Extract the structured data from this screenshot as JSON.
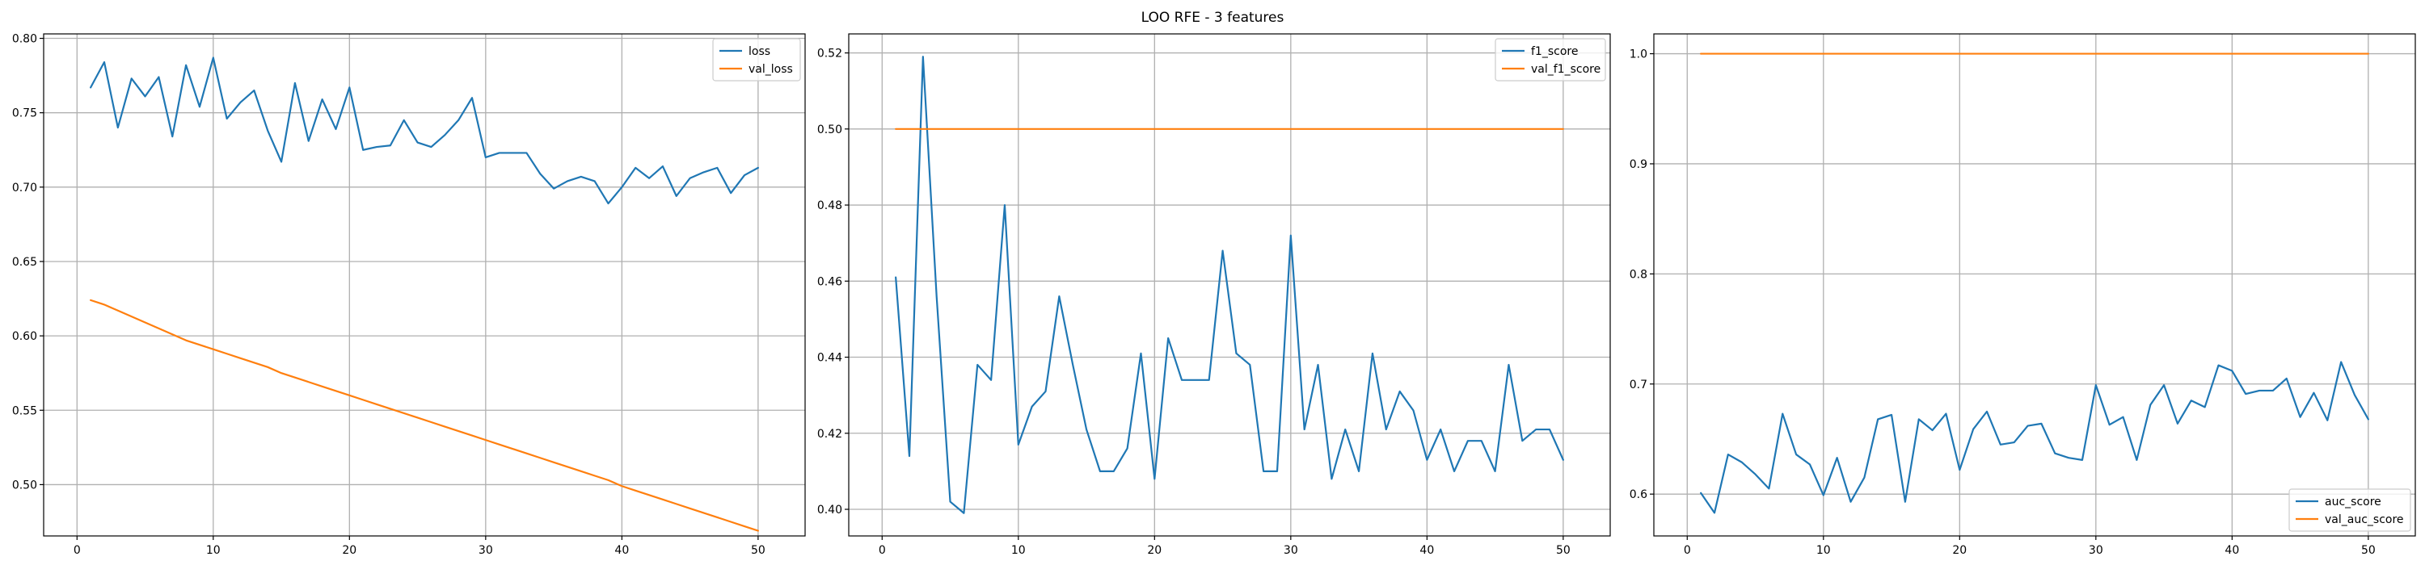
{
  "figure": {
    "title": "LOO RFE - 3 features"
  },
  "chart_data": [
    {
      "type": "line",
      "title": "",
      "xlabel": "",
      "ylabel": "",
      "xlim": [
        -2.45,
        53.45
      ],
      "ylim": [
        0.4655,
        0.803
      ],
      "xticks": [
        0,
        10,
        20,
        30,
        40,
        50
      ],
      "yticks": [
        0.5,
        0.55,
        0.6,
        0.65,
        0.7,
        0.75,
        0.8
      ],
      "ytick_decimals": 2,
      "grid": true,
      "legend": "upper right",
      "x": [
        1,
        2,
        3,
        4,
        5,
        6,
        7,
        8,
        9,
        10,
        11,
        12,
        13,
        14,
        15,
        16,
        17,
        18,
        19,
        20,
        21,
        22,
        23,
        24,
        25,
        26,
        27,
        28,
        29,
        30,
        31,
        32,
        33,
        34,
        35,
        36,
        37,
        38,
        39,
        40,
        41,
        42,
        43,
        44,
        45,
        46,
        47,
        48,
        49,
        50
      ],
      "series": [
        {
          "name": "loss",
          "color": "#1f77b4",
          "values": [
            0.767,
            0.784,
            0.74,
            0.773,
            0.761,
            0.774,
            0.734,
            0.782,
            0.754,
            0.787,
            0.746,
            0.757,
            0.765,
            0.738,
            0.717,
            0.77,
            0.731,
            0.759,
            0.739,
            0.767,
            0.725,
            0.727,
            0.728,
            0.745,
            0.73,
            0.727,
            0.735,
            0.745,
            0.76,
            0.72,
            0.723,
            0.723,
            0.723,
            0.709,
            0.699,
            0.704,
            0.707,
            0.704,
            0.689,
            0.7,
            0.713,
            0.706,
            0.714,
            0.694,
            0.706,
            0.71,
            0.713,
            0.696,
            0.708,
            0.713
          ]
        },
        {
          "name": "val_loss",
          "color": "#ff7f0e",
          "values": [
            0.624,
            0.621,
            0.617,
            0.613,
            0.609,
            0.605,
            0.601,
            0.597,
            0.594,
            0.591,
            0.588,
            0.585,
            0.582,
            0.579,
            0.575,
            0.572,
            0.569,
            0.566,
            0.563,
            0.56,
            0.557,
            0.554,
            0.551,
            0.548,
            0.545,
            0.542,
            0.539,
            0.536,
            0.533,
            0.53,
            0.527,
            0.524,
            0.521,
            0.518,
            0.515,
            0.512,
            0.509,
            0.506,
            0.503,
            0.499,
            0.496,
            0.493,
            0.49,
            0.487,
            0.484,
            0.481,
            0.478,
            0.475,
            0.472,
            0.469
          ]
        }
      ]
    },
    {
      "type": "line",
      "title": "",
      "xlabel": "",
      "ylabel": "",
      "xlim": [
        -2.45,
        53.45
      ],
      "ylim": [
        0.393,
        0.525
      ],
      "xticks": [
        0,
        10,
        20,
        30,
        40,
        50
      ],
      "yticks": [
        0.4,
        0.42,
        0.44,
        0.46,
        0.48,
        0.5,
        0.52
      ],
      "ytick_decimals": 2,
      "grid": true,
      "legend": "upper right",
      "x": [
        1,
        2,
        3,
        4,
        5,
        6,
        7,
        8,
        9,
        10,
        11,
        12,
        13,
        14,
        15,
        16,
        17,
        18,
        19,
        20,
        21,
        22,
        23,
        24,
        25,
        26,
        27,
        28,
        29,
        30,
        31,
        32,
        33,
        34,
        35,
        36,
        37,
        38,
        39,
        40,
        41,
        42,
        43,
        44,
        45,
        46,
        47,
        48,
        49,
        50
      ],
      "series": [
        {
          "name": "f1_score",
          "color": "#1f77b4",
          "values": [
            0.461,
            0.414,
            0.519,
            0.456,
            0.402,
            0.399,
            0.438,
            0.434,
            0.48,
            0.417,
            0.427,
            0.431,
            0.456,
            0.438,
            0.421,
            0.41,
            0.41,
            0.416,
            0.441,
            0.408,
            0.445,
            0.434,
            0.434,
            0.434,
            0.468,
            0.441,
            0.438,
            0.41,
            0.41,
            0.472,
            0.421,
            0.438,
            0.408,
            0.421,
            0.41,
            0.441,
            0.421,
            0.431,
            0.426,
            0.413,
            0.421,
            0.41,
            0.418,
            0.418,
            0.41,
            0.438,
            0.418,
            0.421,
            0.421,
            0.413
          ]
        },
        {
          "name": "val_f1_score",
          "color": "#ff7f0e",
          "values": [
            0.5,
            0.5,
            0.5,
            0.5,
            0.5,
            0.5,
            0.5,
            0.5,
            0.5,
            0.5,
            0.5,
            0.5,
            0.5,
            0.5,
            0.5,
            0.5,
            0.5,
            0.5,
            0.5,
            0.5,
            0.5,
            0.5,
            0.5,
            0.5,
            0.5,
            0.5,
            0.5,
            0.5,
            0.5,
            0.5,
            0.5,
            0.5,
            0.5,
            0.5,
            0.5,
            0.5,
            0.5,
            0.5,
            0.5,
            0.5,
            0.5,
            0.5,
            0.5,
            0.5,
            0.5,
            0.5,
            0.5,
            0.5,
            0.5,
            0.5
          ]
        }
      ]
    },
    {
      "type": "line",
      "title": "",
      "xlabel": "",
      "ylabel": "",
      "xlim": [
        -2.45,
        53.45
      ],
      "ylim": [
        0.562,
        1.018
      ],
      "xticks": [
        0,
        10,
        20,
        30,
        40,
        50
      ],
      "yticks": [
        0.6,
        0.7,
        0.8,
        0.9,
        1.0
      ],
      "ytick_decimals": 1,
      "grid": true,
      "legend": "lower right",
      "x": [
        1,
        2,
        3,
        4,
        5,
        6,
        7,
        8,
        9,
        10,
        11,
        12,
        13,
        14,
        15,
        16,
        17,
        18,
        19,
        20,
        21,
        22,
        23,
        24,
        25,
        26,
        27,
        28,
        29,
        30,
        31,
        32,
        33,
        34,
        35,
        36,
        37,
        38,
        39,
        40,
        41,
        42,
        43,
        44,
        45,
        46,
        47,
        48,
        49,
        50
      ],
      "series": [
        {
          "name": "auc_score",
          "color": "#1f77b4",
          "values": [
            0.601,
            0.583,
            0.636,
            0.629,
            0.618,
            0.605,
            0.673,
            0.636,
            0.627,
            0.599,
            0.633,
            0.593,
            0.615,
            0.668,
            0.672,
            0.593,
            0.668,
            0.658,
            0.673,
            0.622,
            0.659,
            0.675,
            0.645,
            0.647,
            0.662,
            0.664,
            0.637,
            0.633,
            0.631,
            0.699,
            0.663,
            0.67,
            0.631,
            0.681,
            0.699,
            0.664,
            0.685,
            0.679,
            0.717,
            0.712,
            0.691,
            0.694,
            0.694,
            0.705,
            0.67,
            0.692,
            0.667,
            0.72,
            0.69,
            0.668
          ]
        },
        {
          "name": "val_auc_score",
          "color": "#ff7f0e",
          "values": [
            1.0,
            1.0,
            1.0,
            1.0,
            1.0,
            1.0,
            1.0,
            1.0,
            1.0,
            1.0,
            1.0,
            1.0,
            1.0,
            1.0,
            1.0,
            1.0,
            1.0,
            1.0,
            1.0,
            1.0,
            1.0,
            1.0,
            1.0,
            1.0,
            1.0,
            1.0,
            1.0,
            1.0,
            1.0,
            1.0,
            1.0,
            1.0,
            1.0,
            1.0,
            1.0,
            1.0,
            1.0,
            1.0,
            1.0,
            1.0,
            1.0,
            1.0,
            1.0,
            1.0,
            1.0,
            1.0,
            1.0,
            1.0,
            1.0,
            1.0
          ]
        }
      ]
    }
  ]
}
